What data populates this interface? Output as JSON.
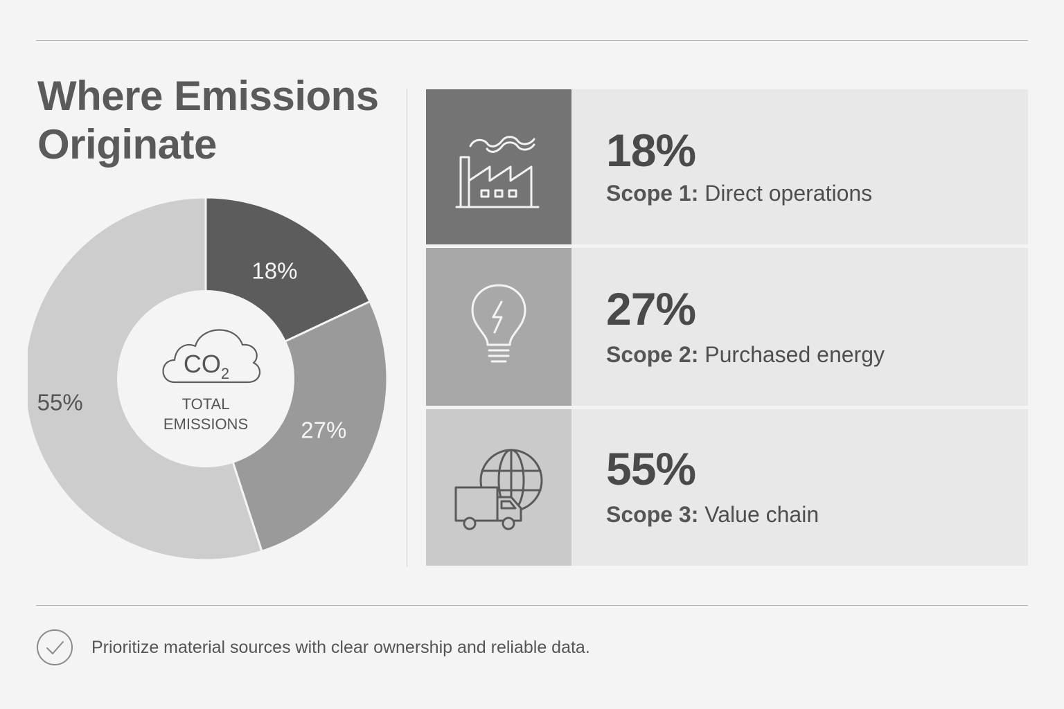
{
  "title": "Where Emissions Originate",
  "center": {
    "co2": "CO",
    "sub": "2",
    "label1": "TOTAL",
    "label2": "EMISSIONS"
  },
  "chart_data": {
    "type": "pie",
    "categories": [
      "Scope 1",
      "Scope 2",
      "Scope 3"
    ],
    "values": [
      18,
      27,
      55
    ],
    "data_labels": [
      "18%",
      "27%",
      "55%"
    ],
    "colors": [
      "#5c5c5c",
      "#9a9a9a",
      "#cdcdcd"
    ]
  },
  "scopes": [
    {
      "pct": "18%",
      "scope": "Scope 1:",
      "desc": "Direct operations",
      "icon": "factory-icon",
      "icon_bg": "#747474",
      "icon_stroke": "#f2f2f2"
    },
    {
      "pct": "27%",
      "scope": "Scope 2:",
      "desc": "Purchased energy",
      "icon": "lightbulb-icon",
      "icon_bg": "#a8a8a8",
      "icon_stroke": "#f4f4f4"
    },
    {
      "pct": "55%",
      "scope": "Scope 3:",
      "desc": "Value chain",
      "icon": "globe-truck-icon",
      "icon_bg": "#cacaca",
      "icon_stroke": "#5a5a5a"
    }
  ],
  "footer": {
    "icon": "check-circle-icon",
    "text": "Prioritize material sources with clear ownership and reliable data."
  }
}
